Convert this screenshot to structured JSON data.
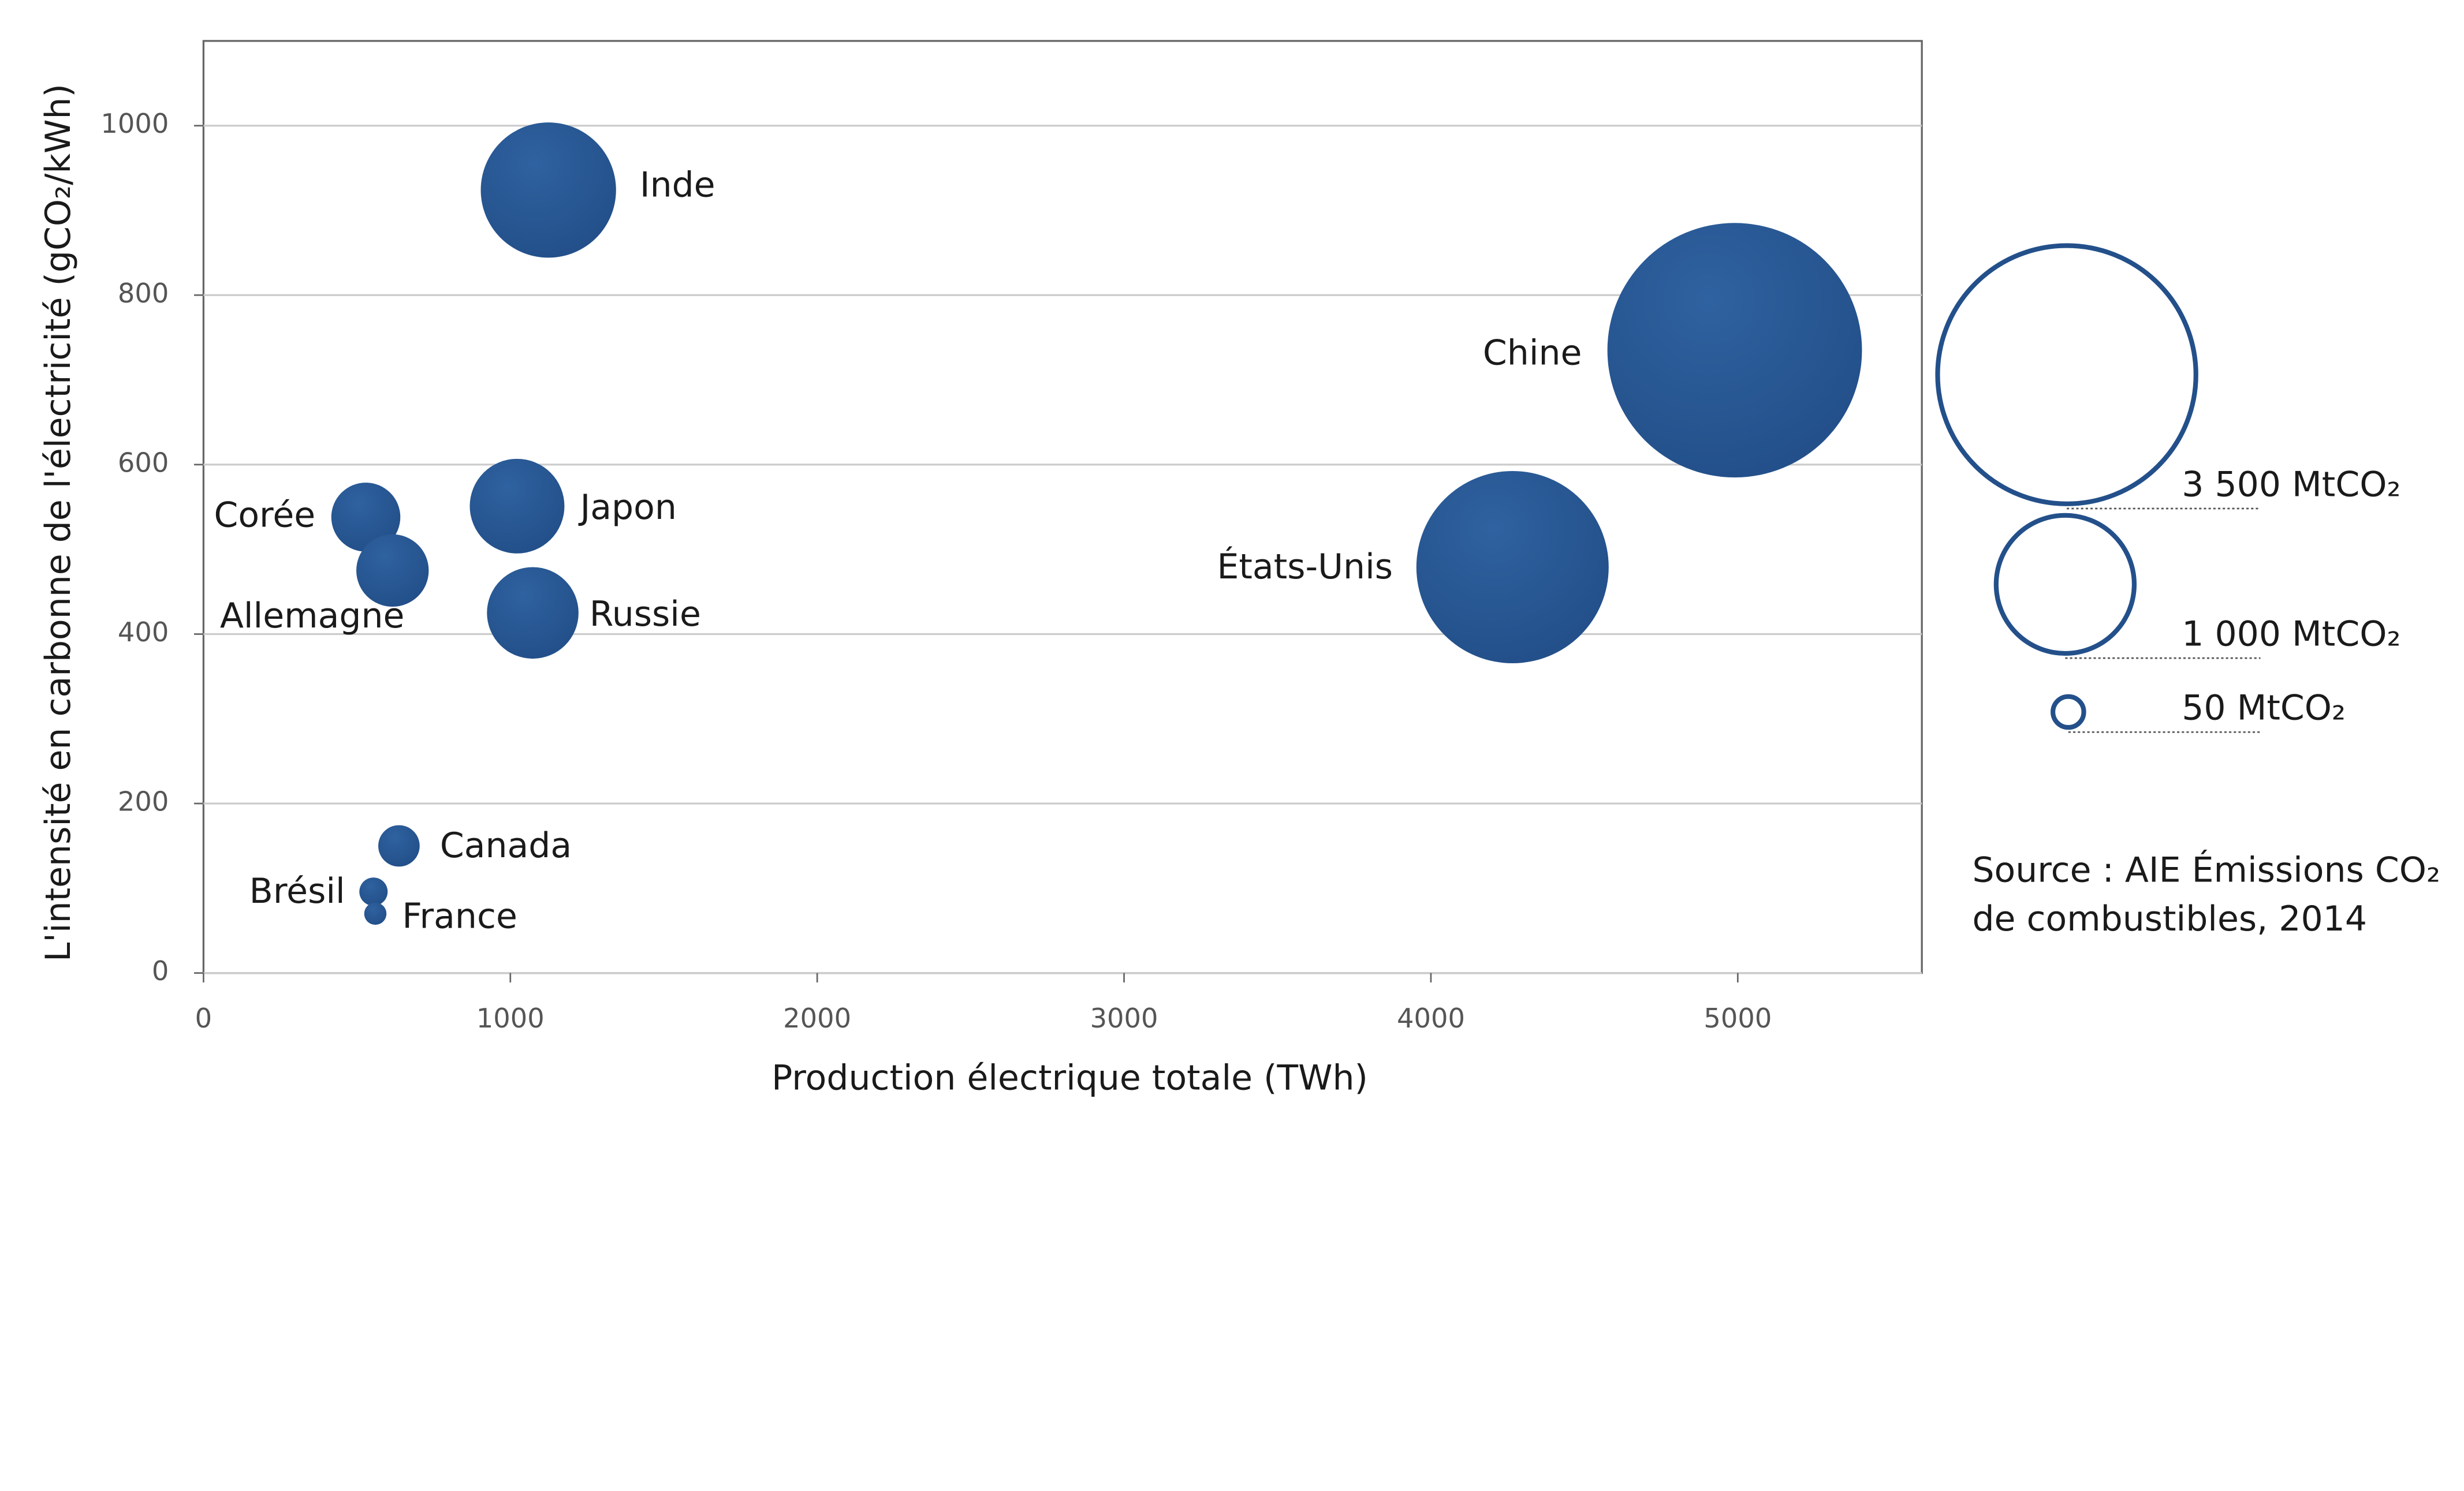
{
  "chart_data": {
    "type": "bubble",
    "y_label": "L'intensité en carbonne de l'électricité (gCO₂/kWh)",
    "x_label": "Production électrique totale (TWh)",
    "labels": [
      "Inde",
      "Chine",
      "États-Unis",
      "Japon",
      "Corée",
      "Allemagne",
      "Russie",
      "Canada",
      "Brésil",
      "France"
    ],
    "x": [
      1124,
      4990,
      4266,
      1022,
      529,
      616,
      1073,
      637,
      554,
      560
    ],
    "values": [
      924,
      735,
      479,
      551,
      538,
      475,
      425,
      150,
      96,
      70
    ],
    "sizes": [
      960,
      3400,
      1940,
      470,
      250,
      275,
      440,
      90,
      42,
      26
    ],
    "color": "#23508a",
    "xlim": [
      0,
      5600
    ],
    "ylim": [
      0,
      1100
    ],
    "xticks": [
      0,
      1000,
      2000,
      3000,
      4000,
      5000
    ],
    "yticks": [
      0,
      200,
      400,
      600,
      800,
      1000
    ],
    "grid": true,
    "size_legend": [
      {
        "value": 3500,
        "label": "3 500 MtCO₂"
      },
      {
        "value": 1000,
        "label": "1 000 MtCO₂"
      },
      {
        "value": 50,
        "label": "50 MtCO₂"
      }
    ],
    "source": [
      "Source : AIE Émissions CO₂",
      "de combustibles, 2014"
    ]
  }
}
